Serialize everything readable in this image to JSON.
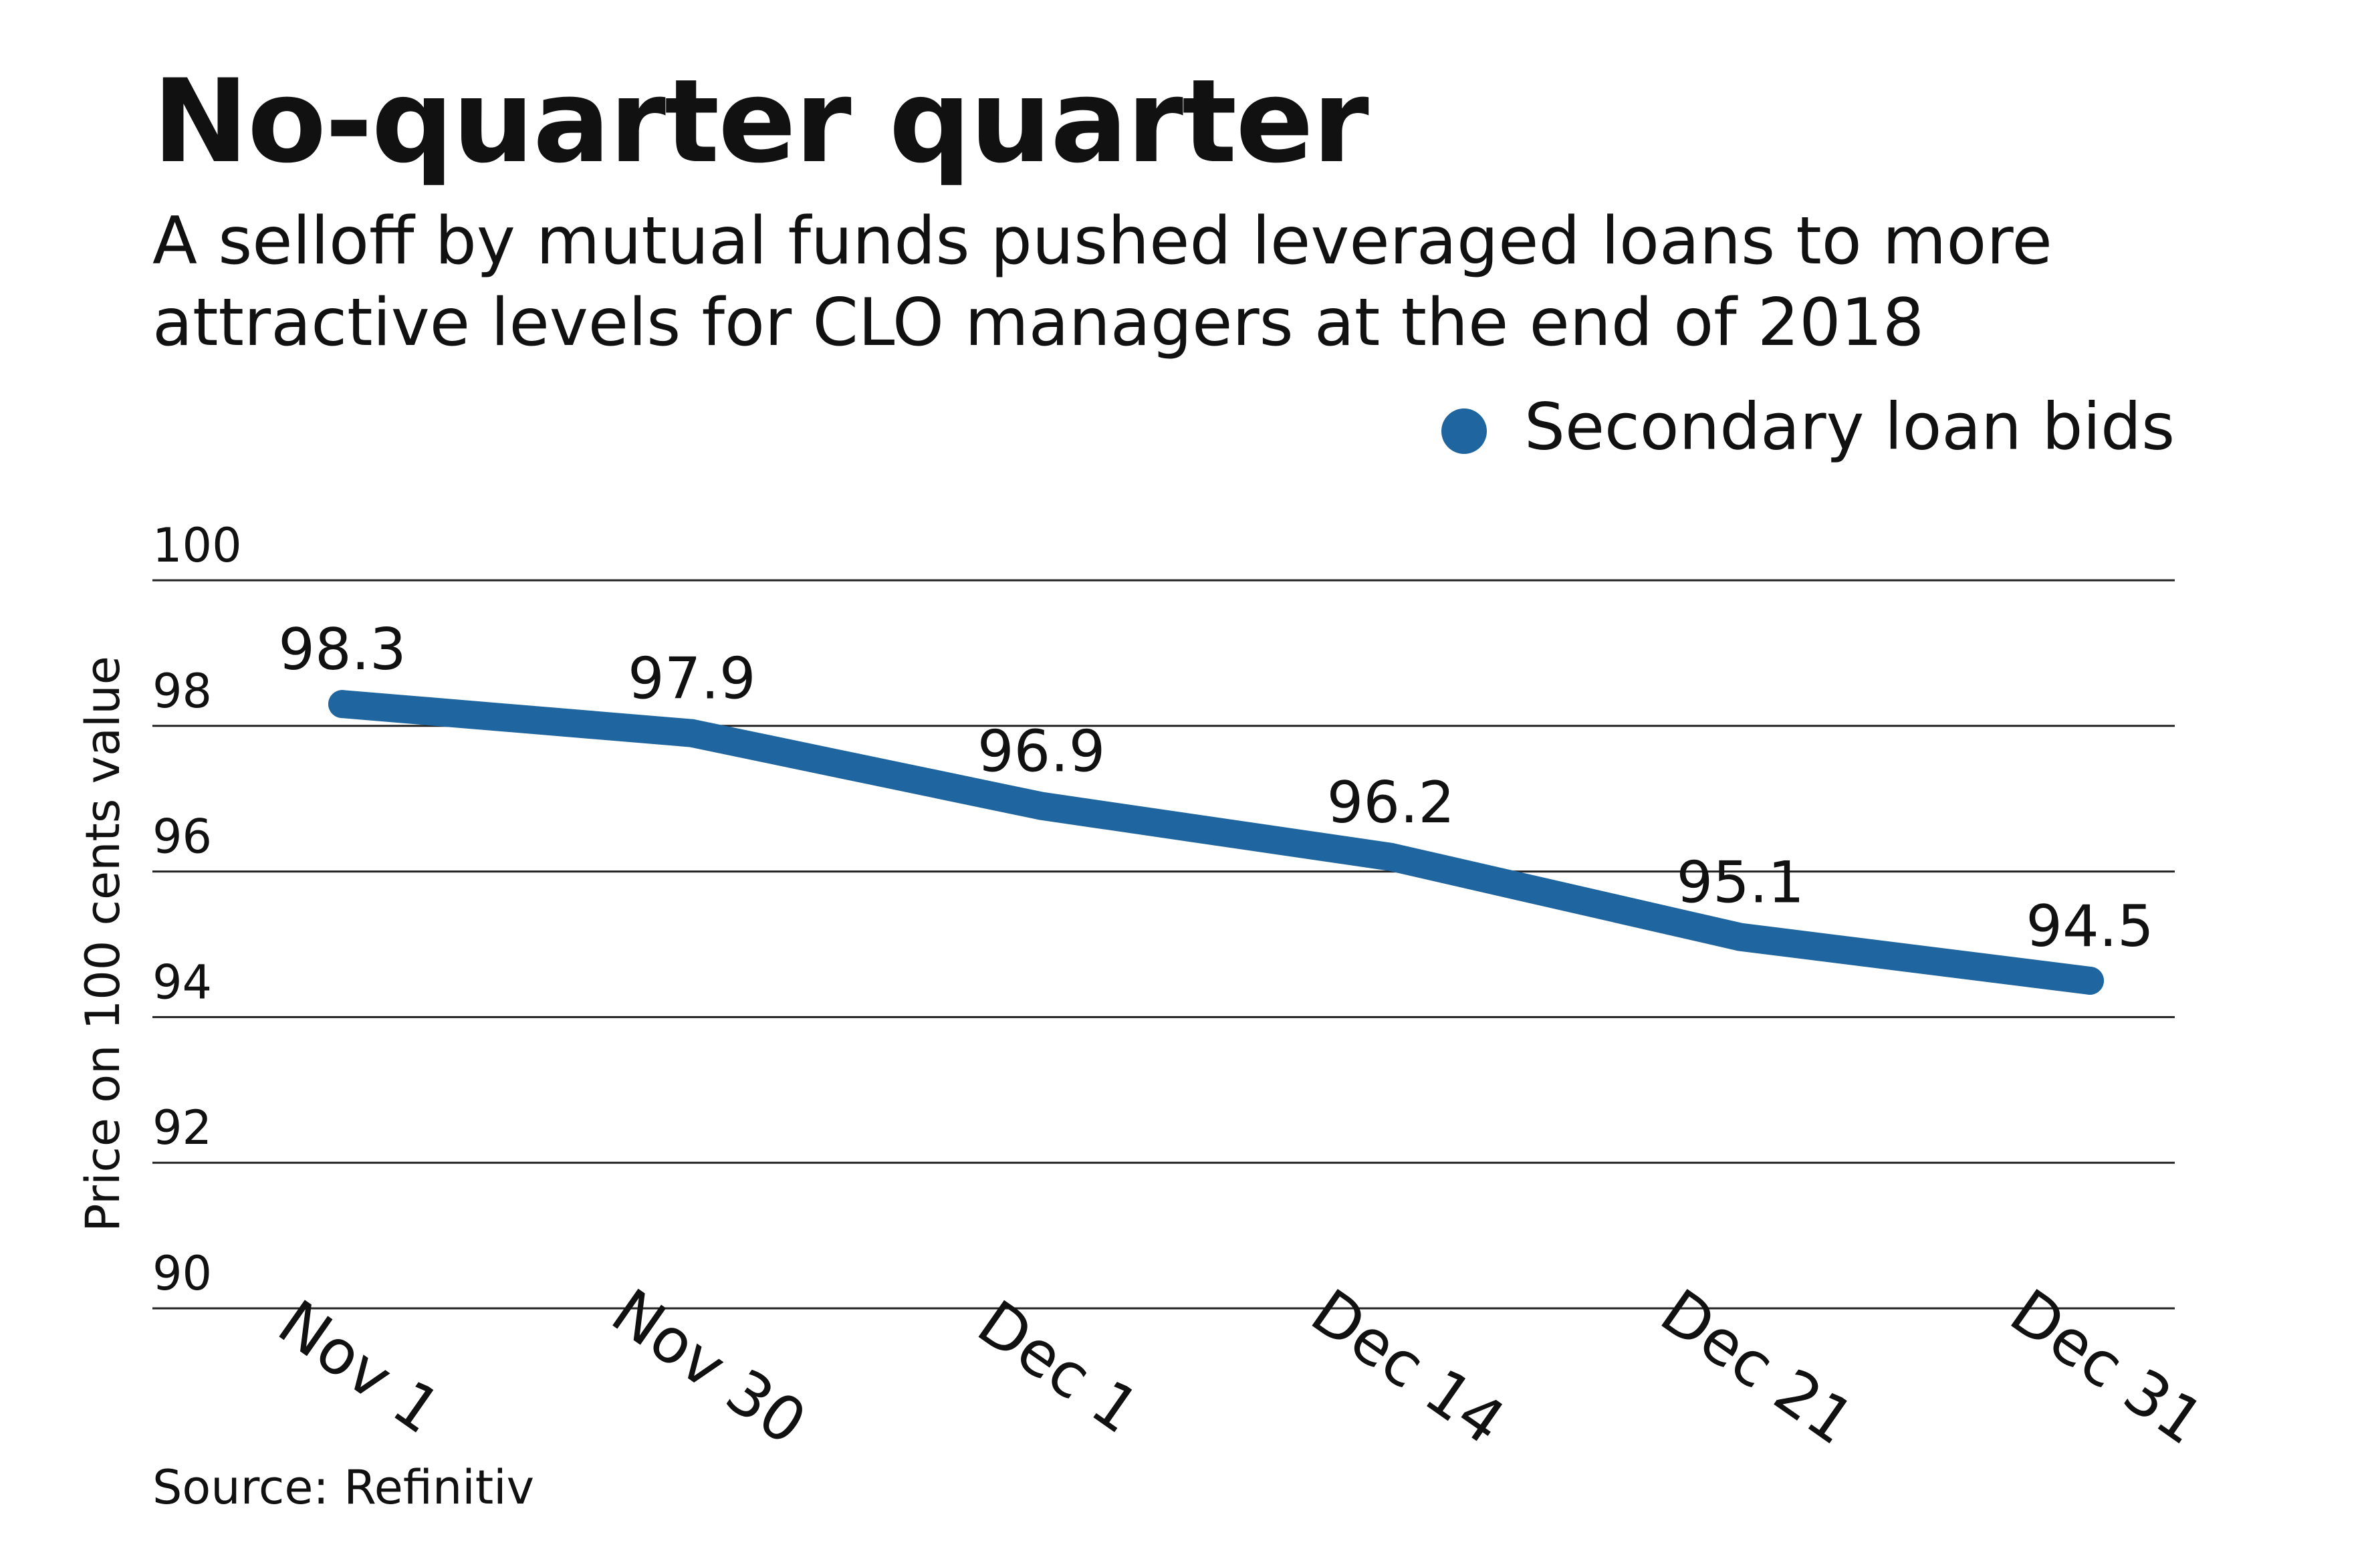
{
  "chart_data": {
    "type": "line",
    "title": "No-quarter quarter",
    "subtitle": "A selloff by mutual funds pushed leveraged loans to more attractive levels for CLO managers at the end of 2018",
    "ylabel": "Price on 100 cents value",
    "xlabel": "",
    "categories": [
      "Nov 1",
      "Nov 30",
      "Dec 1",
      "Dec 14",
      "Dec 21",
      "Dec 31"
    ],
    "series": [
      {
        "name": "Secondary loan bids",
        "values": [
          98.3,
          97.9,
          96.9,
          96.2,
          95.1,
          94.5
        ],
        "data_labels": [
          "98.3",
          "97.9",
          "96.9",
          "96.2",
          "95.1",
          "94.5"
        ],
        "color": "#1f66a0"
      }
    ],
    "ylim": [
      90,
      100
    ],
    "yticks": [
      "90",
      "92",
      "94",
      "96",
      "98",
      "100"
    ],
    "grid": true,
    "legend": "top-right",
    "source": "Source: Refinitiv"
  }
}
